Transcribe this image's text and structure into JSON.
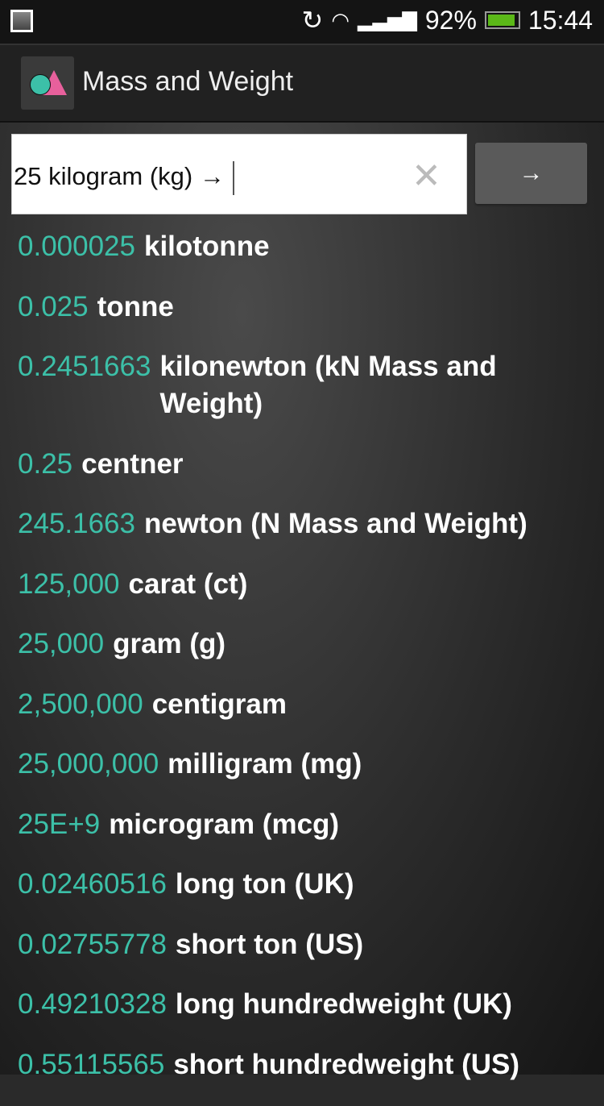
{
  "status": {
    "battery": "92%",
    "battery_level": 0.92,
    "time": "15:44",
    "icons": [
      "gallery-icon",
      "sync-icon",
      "wifi-icon",
      "signal-icon",
      "battery-icon"
    ]
  },
  "app": {
    "title": "Mass and Weight"
  },
  "input": {
    "value": "25 kilogram (kg) →",
    "clear_label": "✕",
    "go_label": "→"
  },
  "colors": {
    "number": "#3cc0a8",
    "unit": "#ffffff"
  },
  "results": [
    {
      "value": "0.000025",
      "unit": "kilotonne"
    },
    {
      "value": "0.025",
      "unit": "tonne"
    },
    {
      "value": "0.2451663",
      "unit": "kilonewton (kN Mass and Weight)"
    },
    {
      "value": "0.25",
      "unit": "centner"
    },
    {
      "value": "245.1663",
      "unit": "newton (N Mass and Weight)"
    },
    {
      "value": "125,000",
      "unit": "carat (ct)"
    },
    {
      "value": "25,000",
      "unit": "gram (g)"
    },
    {
      "value": "2,500,000",
      "unit": "centigram"
    },
    {
      "value": "25,000,000",
      "unit": "milligram (mg)"
    },
    {
      "value": "25E+9",
      "unit": "microgram (mcg)"
    },
    {
      "value": "0.02460516",
      "unit": "long ton (UK)"
    },
    {
      "value": "0.02755778",
      "unit": "short ton (US)"
    },
    {
      "value": "0.49210328",
      "unit": "long hundredweight (UK)"
    },
    {
      "value": "0.55115565",
      "unit": "short hundredweight (US)"
    }
  ]
}
